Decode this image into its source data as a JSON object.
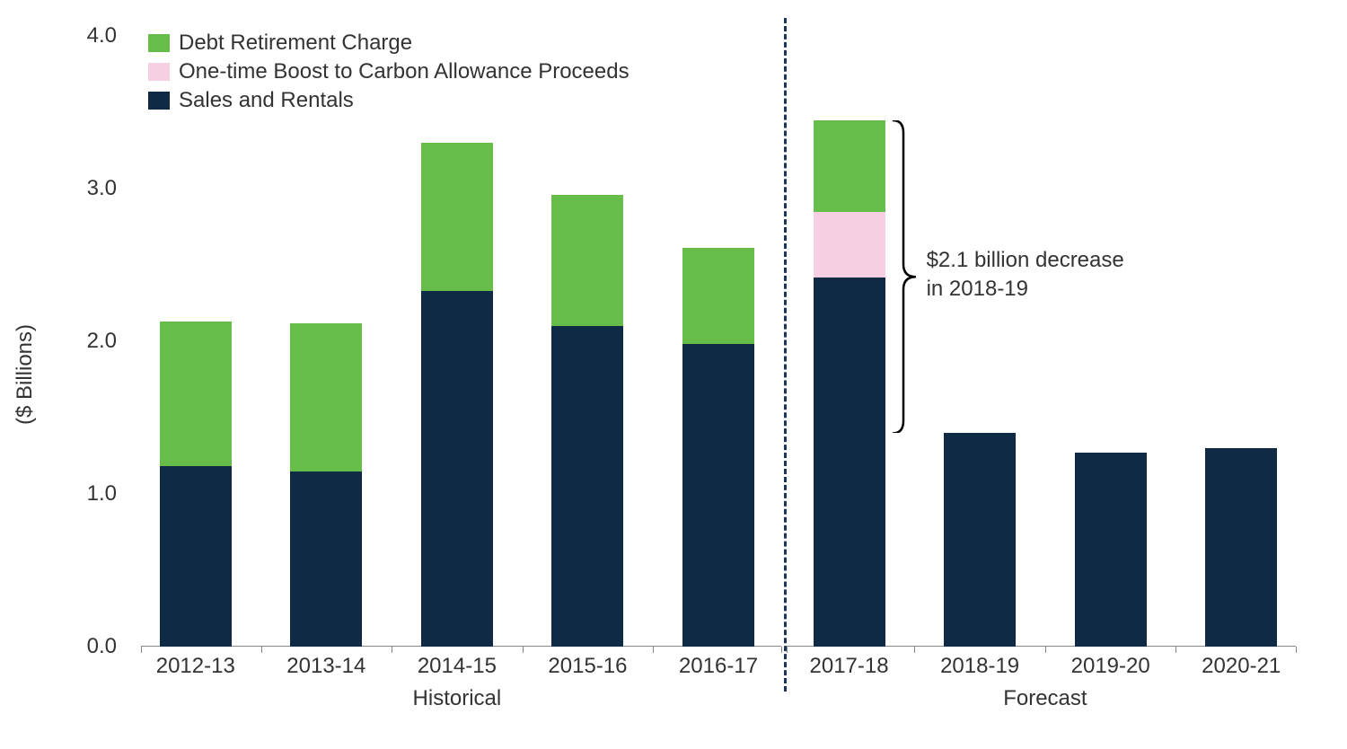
{
  "chart": {
    "type": "stacked-bar",
    "y_axis": {
      "label": "($ Billions)",
      "min": 0.0,
      "max": 4.0,
      "ticks": [
        0.0,
        1.0,
        2.0,
        3.0,
        4.0
      ],
      "tick_labels": [
        "0.0",
        "1.0",
        "2.0",
        "3.0",
        "4.0"
      ],
      "label_fontsize": 24,
      "tick_fontsize": 24
    },
    "categories": [
      "2012-13",
      "2013-14",
      "2014-15",
      "2015-16",
      "2016-17",
      "2017-18",
      "2018-19",
      "2019-20",
      "2020-21"
    ],
    "groups": {
      "historical": {
        "label": "Historical",
        "indices": [
          0,
          1,
          2,
          3,
          4
        ]
      },
      "forecast": {
        "label": "Forecast",
        "indices": [
          5,
          6,
          7,
          8
        ]
      }
    },
    "series": [
      {
        "key": "sales",
        "label": "Sales and Rentals",
        "color": "#0e2a44"
      },
      {
        "key": "carbon",
        "label": "One-time Boost to Carbon Allowance Proceeds",
        "color": "#f7cfe3"
      },
      {
        "key": "debt",
        "label": "Debt Retirement Charge",
        "color": "#67bd4a"
      }
    ],
    "legend_order": [
      "debt",
      "carbon",
      "sales"
    ],
    "data": {
      "sales": [
        1.18,
        1.15,
        2.33,
        2.1,
        1.98,
        2.42,
        1.4,
        1.27,
        1.3
      ],
      "carbon": [
        0.0,
        0.0,
        0.0,
        0.0,
        0.0,
        0.43,
        0.0,
        0.0,
        0.0
      ],
      "debt": [
        0.95,
        0.97,
        0.97,
        0.86,
        0.63,
        0.6,
        0.0,
        0.0,
        0.0
      ]
    },
    "bar_width_ratio": 0.55,
    "background_color": "#ffffff",
    "divider_after_index": 4,
    "divider_color": "#1b365d",
    "annotation": {
      "line1": "$2.1 billion decrease",
      "line2": "in 2018-19",
      "attached_to_index": 5
    },
    "x_label_fontsize": 24
  }
}
